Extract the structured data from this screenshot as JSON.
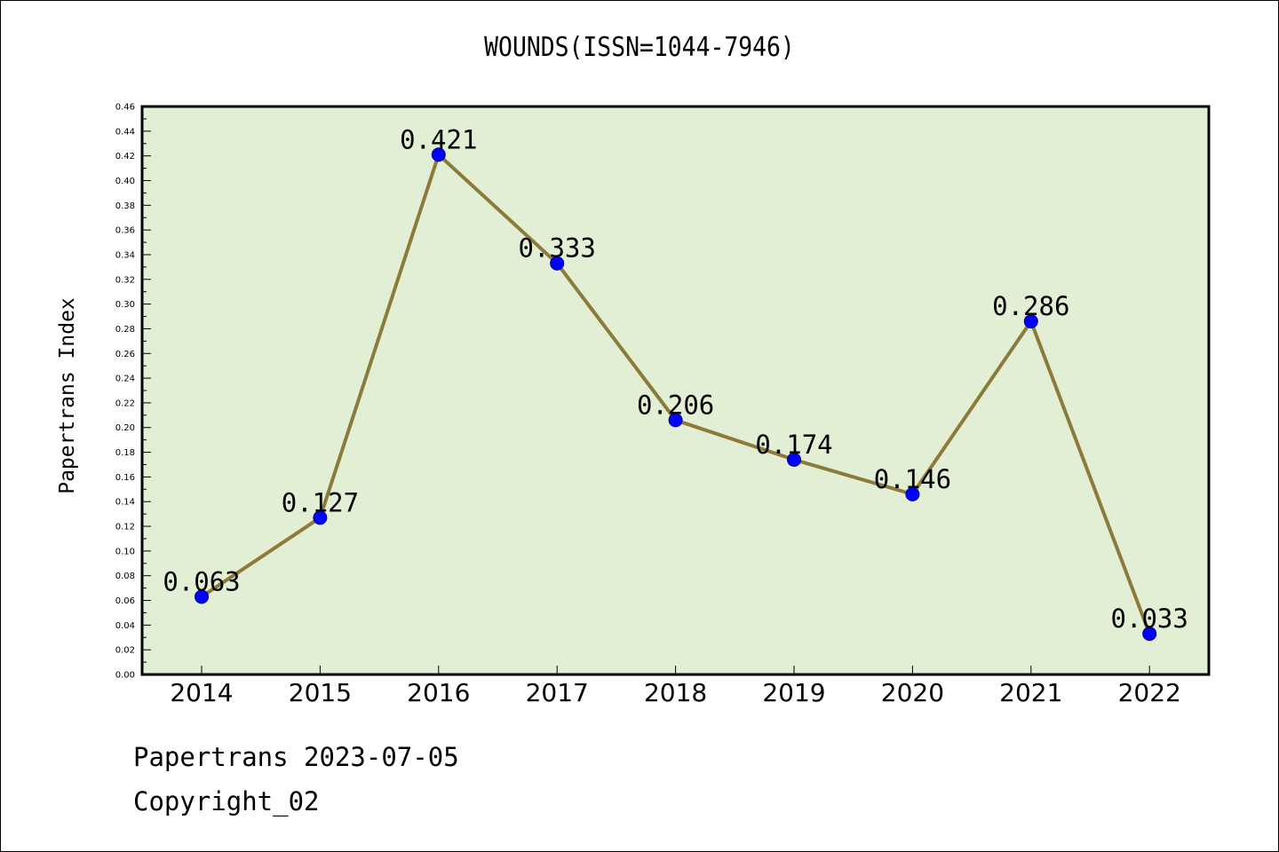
{
  "chart_data": {
    "type": "line",
    "title": "WOUNDS(ISSN=1044-7946)",
    "xlabel": "",
    "ylabel": "Papertrans Index",
    "categories": [
      "2014",
      "2015",
      "2016",
      "2017",
      "2018",
      "2019",
      "2020",
      "2021",
      "2022"
    ],
    "values": [
      0.063,
      0.127,
      0.421,
      0.333,
      0.206,
      0.174,
      0.146,
      0.286,
      0.033
    ],
    "data_labels": [
      "0.063",
      "0.127",
      "0.421",
      "0.333",
      "0.206",
      "0.174",
      "0.146",
      "0.286",
      "0.033"
    ],
    "ylim": [
      0,
      0.46
    ],
    "yticks": [
      "0.00",
      "0.02",
      "0.04",
      "0.06",
      "0.08",
      "0.10",
      "0.12",
      "0.14",
      "0.16",
      "0.18",
      "0.20",
      "0.22",
      "0.24",
      "0.26",
      "0.28",
      "0.30",
      "0.32",
      "0.34",
      "0.36",
      "0.38",
      "0.40",
      "0.42",
      "0.44",
      "0.46"
    ],
    "grid": false,
    "colors": {
      "plot_background": "#e2efd4",
      "line": "#8b7a3a",
      "marker": "#0000ff"
    }
  },
  "footer": {
    "line1": "Papertrans 2023-07-05",
    "line2": "Copyright_02"
  }
}
